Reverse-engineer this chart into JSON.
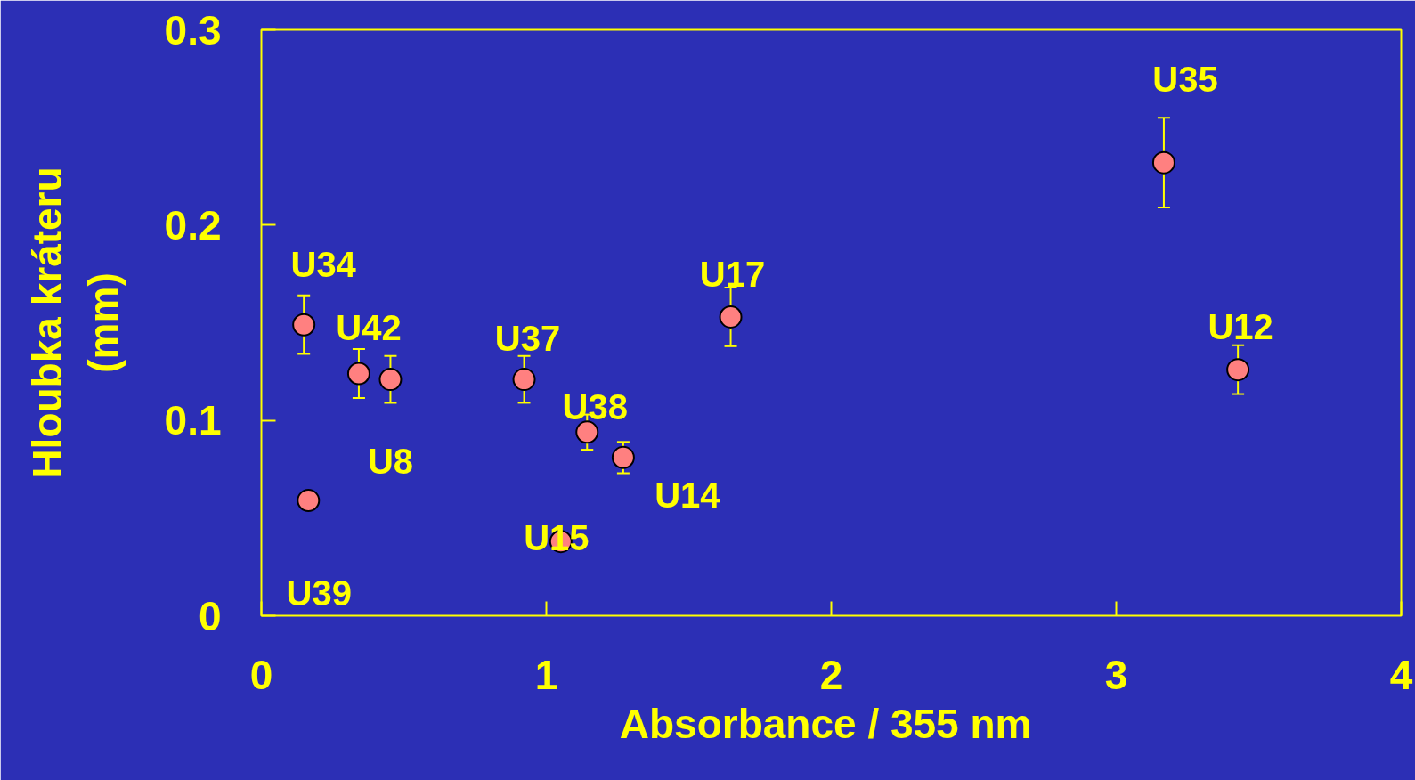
{
  "chart_data": {
    "type": "scatter",
    "xlabel": "Absorbance /  355 nm",
    "ylabel": "Hloubka kráteru\n(mm)",
    "x": [
      0.149,
      0.342,
      0.453,
      0.165,
      0.922,
      1.143,
      1.27,
      1.051,
      1.647,
      3.167,
      3.427
    ],
    "series": [
      {
        "color": "#ff8080",
        "values": [
          0.149,
          0.124,
          0.121,
          0.059,
          0.121,
          0.094,
          0.081,
          0.038,
          0.153,
          0.232,
          0.126
        ],
        "errors": [
          0.015,
          0.0125,
          0.012,
          null,
          0.012,
          0.009,
          0.008,
          null,
          0.015,
          0.023,
          0.0125
        ]
      }
    ],
    "annotations": [
      {
        "text": "U34",
        "x": 0.149,
        "y": 0.149
      },
      {
        "text": "U42",
        "x": 0.342,
        "y": 0.124
      },
      {
        "text": "U8",
        "x": 0.453,
        "y": 0.121
      },
      {
        "text": "U39",
        "x": 0.165,
        "y": 0.059
      },
      {
        "text": "U37",
        "x": 0.922,
        "y": 0.121
      },
      {
        "text": "U38",
        "x": 1.143,
        "y": 0.094
      },
      {
        "text": "U14",
        "x": 1.27,
        "y": 0.081
      },
      {
        "text": "U15",
        "x": 1.051,
        "y": 0.038
      },
      {
        "text": "U17",
        "x": 1.647,
        "y": 0.153
      },
      {
        "text": "U35",
        "x": 3.167,
        "y": 0.232
      },
      {
        "text": "U12",
        "x": 3.427,
        "y": 0.126
      }
    ],
    "xlim": [
      0,
      4
    ],
    "ylim": [
      0,
      0.3
    ],
    "xticks": [
      0,
      1,
      2,
      3,
      4
    ],
    "yticks": [
      0,
      0.1,
      0.2,
      0.3
    ],
    "marker": "circle",
    "grid": false
  }
}
